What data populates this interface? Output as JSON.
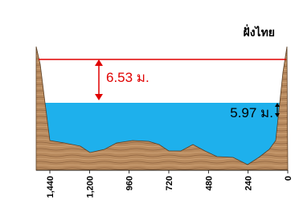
{
  "bank_label": "ฝั่งไทย",
  "annotations": {
    "freeboard": "6.53 ม.",
    "water_depth": "5.97 ม."
  },
  "axis": {
    "ticks": [
      {
        "value": 1440,
        "label": "1,440"
      },
      {
        "value": 1200,
        "label": "1,200"
      },
      960,
      720,
      480,
      240,
      0
    ]
  }
}
